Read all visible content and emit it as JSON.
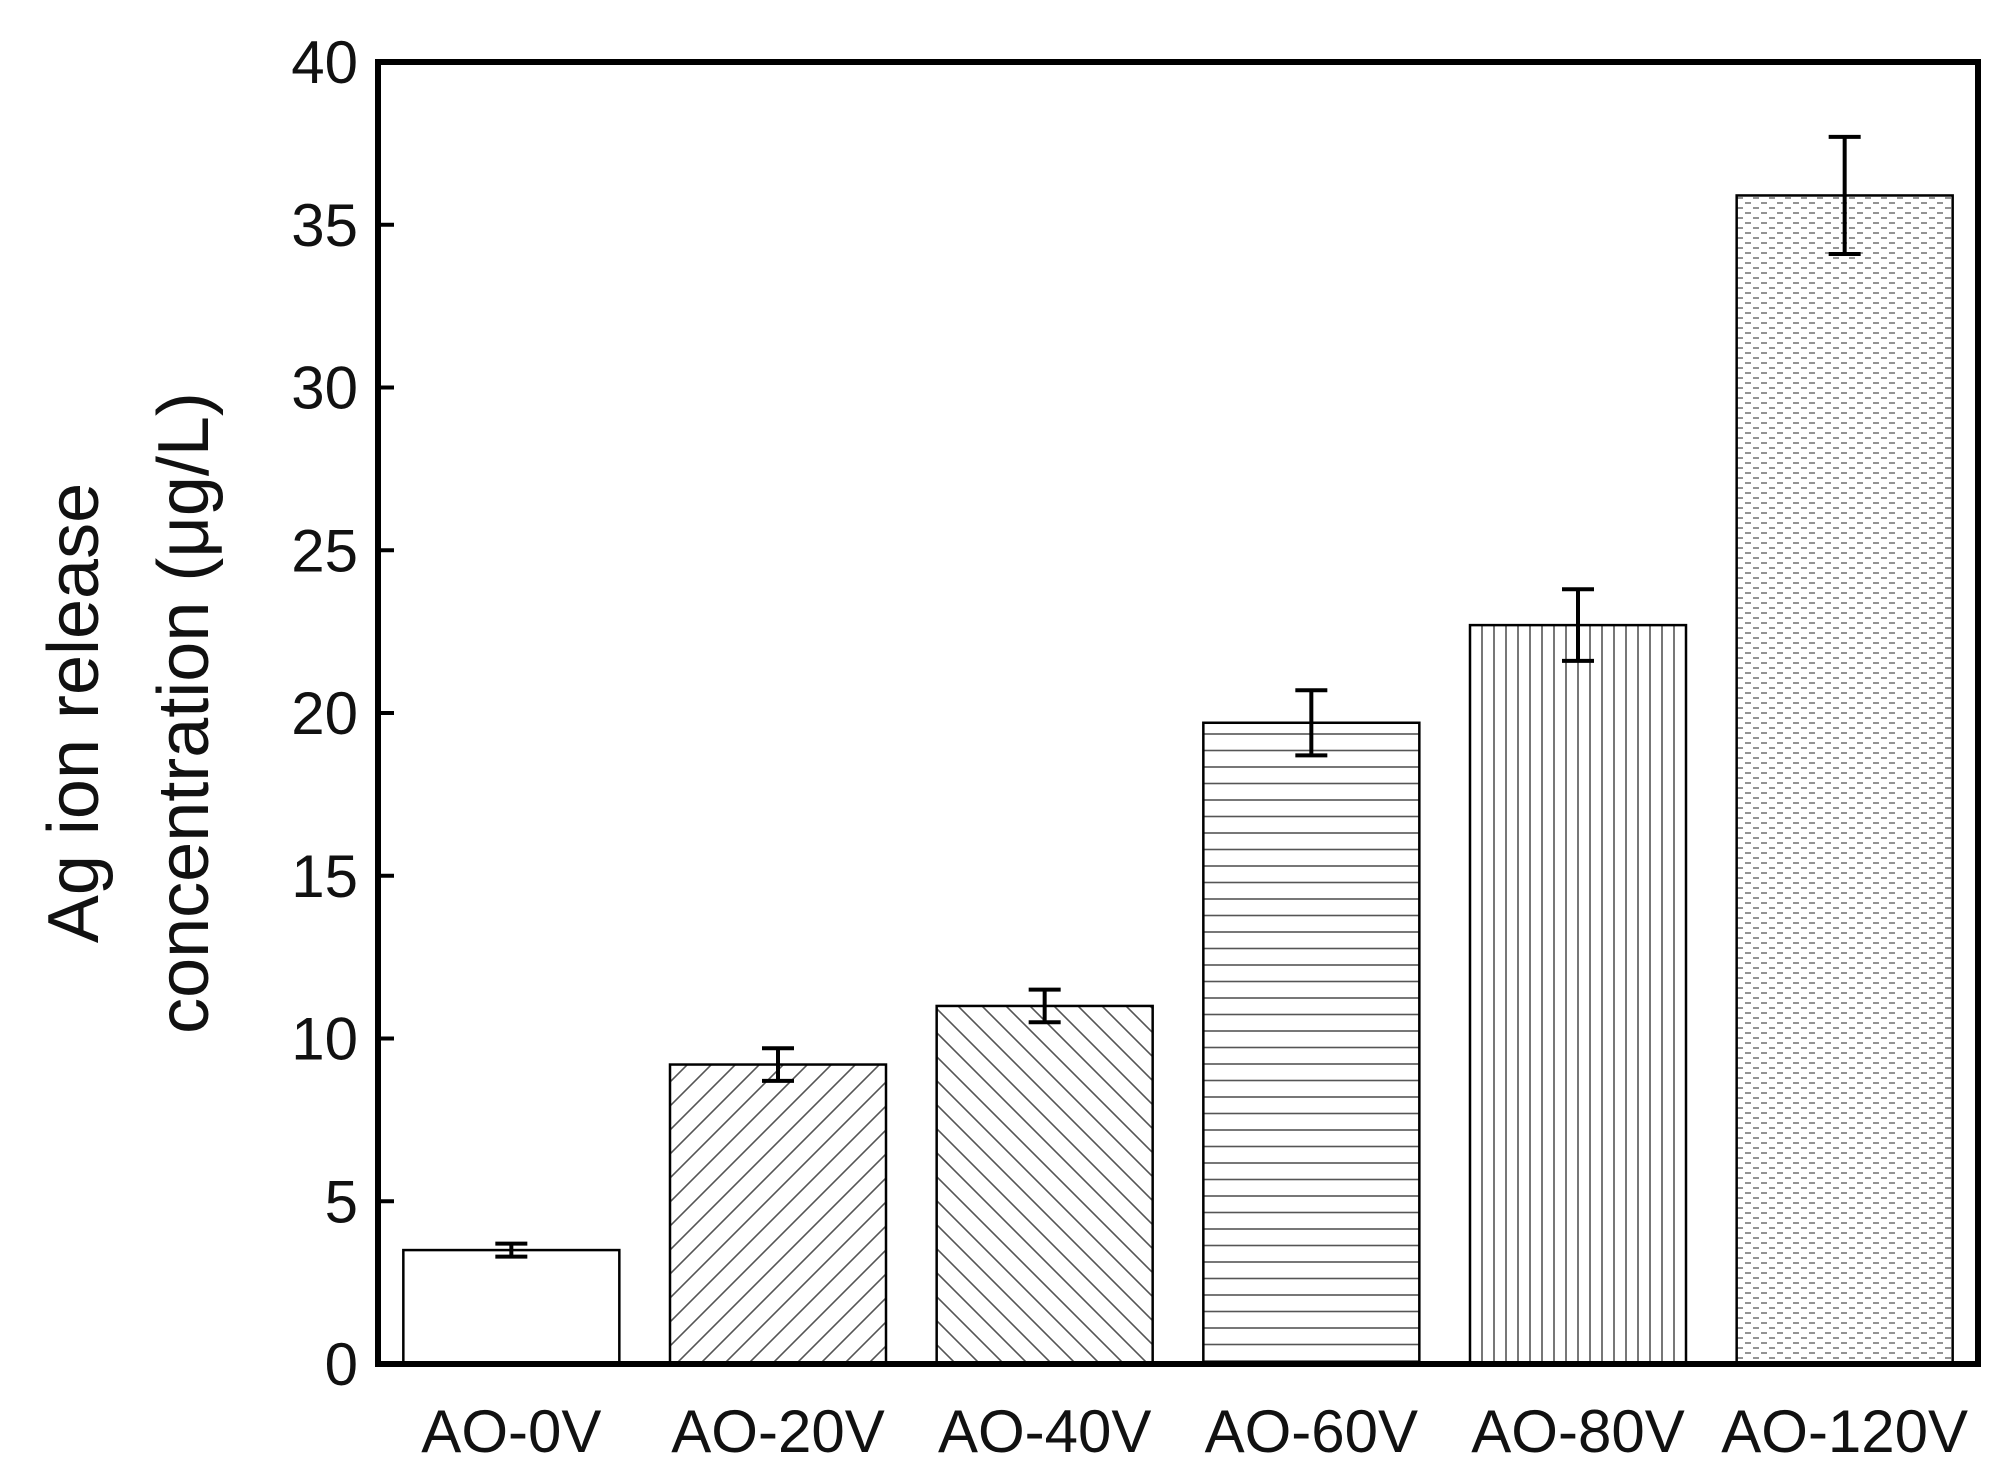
{
  "chart_data": {
    "type": "bar",
    "title": "",
    "xlabel": "",
    "ylabel_lines": [
      "Ag ion release",
      "concentration (μg/L)"
    ],
    "categories": [
      "AO-0V",
      "AO-20V",
      "AO-40V",
      "AO-60V",
      "AO-80V",
      "AO-120V"
    ],
    "values": [
      3.5,
      9.2,
      11.0,
      19.7,
      22.7,
      35.9
    ],
    "errors": [
      0.2,
      0.5,
      0.5,
      1.0,
      1.1,
      1.8
    ],
    "patterns": [
      "none",
      "diag-up",
      "diag-down",
      "horizontal",
      "vertical",
      "dots"
    ],
    "ylim": [
      0,
      40
    ],
    "yticks": [
      0,
      5,
      10,
      15,
      20,
      25,
      30,
      35,
      40
    ],
    "grid": false,
    "bar_fill": "#ffffff",
    "stroke_color": "#000000"
  }
}
